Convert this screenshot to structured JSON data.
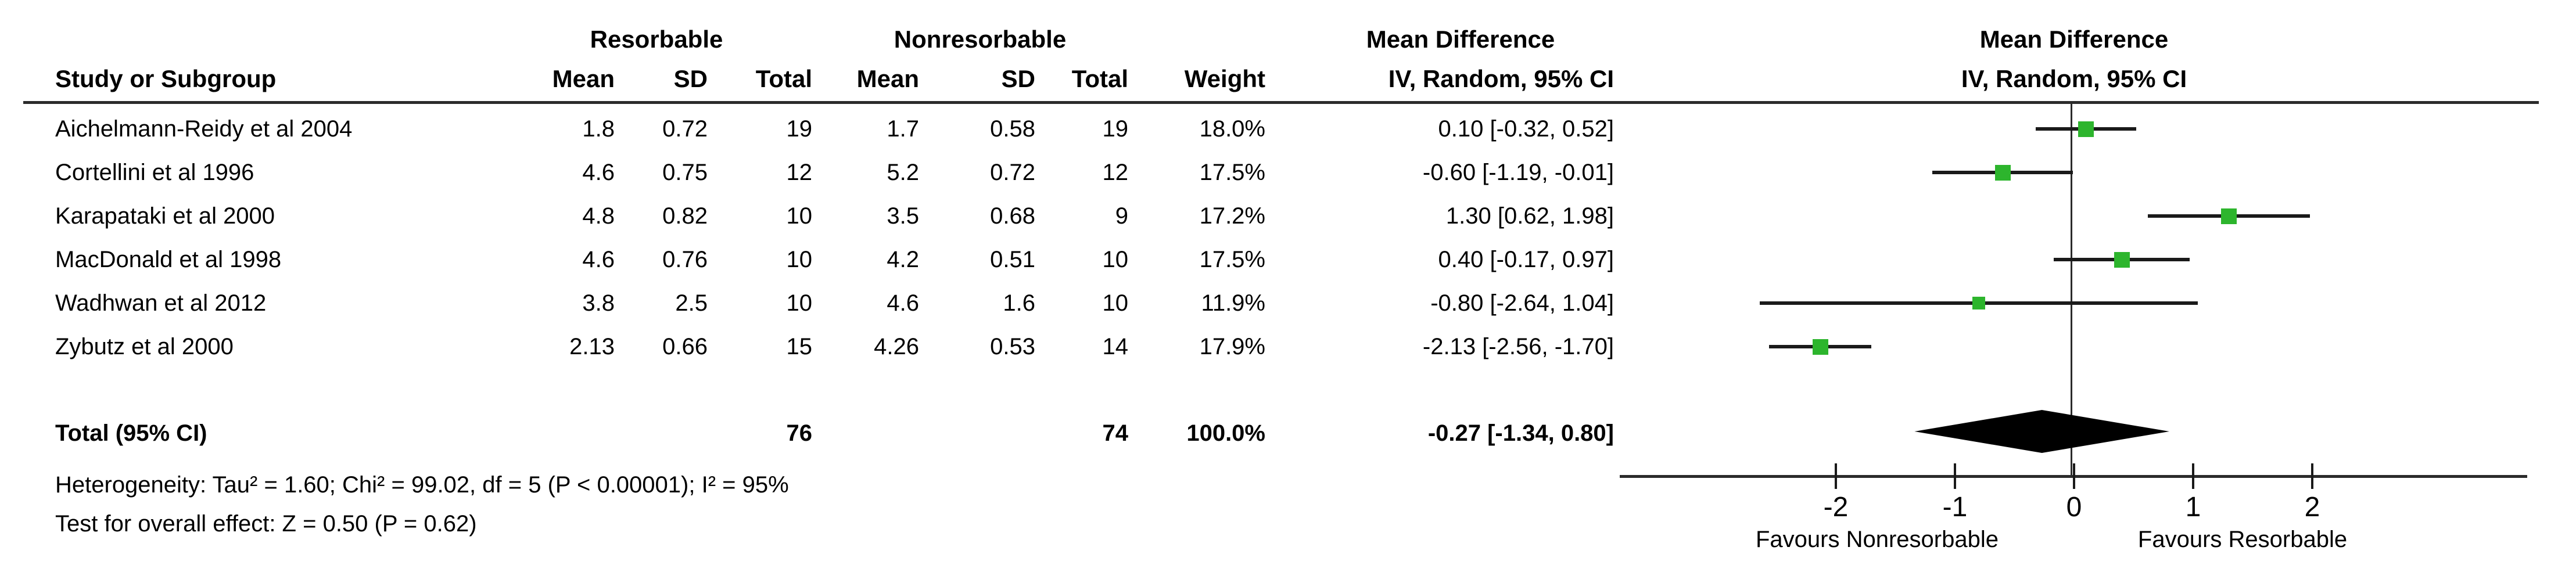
{
  "header": {
    "study_col": "Study or Subgroup",
    "group1": "Resorbable",
    "group2": "Nonresorbable",
    "mean": "Mean",
    "sd": "SD",
    "total": "Total",
    "weight": "Weight",
    "effect_line1": "Mean Difference",
    "effect_line2": "IV, Random, 95% CI",
    "plot_effect_line1": "Mean Difference",
    "plot_effect_line2": "IV, Random, 95% CI"
  },
  "chart_data": {
    "type": "forest",
    "effect_measure": "Mean Difference",
    "model": "IV, Random, 95% CI",
    "studies": [
      {
        "name": "Aichelmann-Reidy et al 2004",
        "r_mean": "1.8",
        "r_sd": "0.72",
        "r_total": "19",
        "n_mean": "1.7",
        "n_sd": "0.58",
        "n_total": "19",
        "weight": "18.0%",
        "ci_text": "0.10 [-0.32, 0.52]",
        "md": 0.1,
        "low": -0.32,
        "high": 0.52,
        "weight_value": 18.0
      },
      {
        "name": "Cortellini et al 1996",
        "r_mean": "4.6",
        "r_sd": "0.75",
        "r_total": "12",
        "n_mean": "5.2",
        "n_sd": "0.72",
        "n_total": "12",
        "weight": "17.5%",
        "ci_text": "-0.60 [-1.19, -0.01]",
        "md": -0.6,
        "low": -1.19,
        "high": -0.01,
        "weight_value": 17.5
      },
      {
        "name": "Karapataki et al 2000",
        "r_mean": "4.8",
        "r_sd": "0.82",
        "r_total": "10",
        "n_mean": "3.5",
        "n_sd": "0.68",
        "n_total": "9",
        "weight": "17.2%",
        "ci_text": "1.30 [0.62, 1.98]",
        "md": 1.3,
        "low": 0.62,
        "high": 1.98,
        "weight_value": 17.2
      },
      {
        "name": "MacDonald et al 1998",
        "r_mean": "4.6",
        "r_sd": "0.76",
        "r_total": "10",
        "n_mean": "4.2",
        "n_sd": "0.51",
        "n_total": "10",
        "weight": "17.5%",
        "ci_text": "0.40 [-0.17, 0.97]",
        "md": 0.4,
        "low": -0.17,
        "high": 0.97,
        "weight_value": 17.5
      },
      {
        "name": "Wadhwan et al 2012",
        "r_mean": "3.8",
        "r_sd": "2.5",
        "r_total": "10",
        "n_mean": "4.6",
        "n_sd": "1.6",
        "n_total": "10",
        "weight": "11.9%",
        "ci_text": "-0.80 [-2.64, 1.04]",
        "md": -0.8,
        "low": -2.64,
        "high": 1.04,
        "weight_value": 11.9
      },
      {
        "name": "Zybutz et al 2000",
        "r_mean": "2.13",
        "r_sd": "0.66",
        "r_total": "15",
        "n_mean": "4.26",
        "n_sd": "0.53",
        "n_total": "14",
        "weight": "17.9%",
        "ci_text": "-2.13 [-2.56, -1.70]",
        "md": -2.13,
        "low": -2.56,
        "high": -1.7,
        "weight_value": 17.9
      }
    ],
    "total": {
      "label": "Total (95% CI)",
      "r_total": "76",
      "n_total": "74",
      "weight": "100.0%",
      "ci_text": "-0.27 [-1.34, 0.80]",
      "md": -0.27,
      "low": -1.34,
      "high": 0.8
    },
    "heterogeneity": "Heterogeneity: Tau² = 1.60; Chi² = 99.02, df = 5 (P < 0.00001); I² = 95%",
    "overall_effect": "Test for overall effect: Z = 0.50 (P = 0.62)",
    "axis": {
      "ticks": [
        "-2",
        "-1",
        "0",
        "1",
        "2"
      ],
      "tick_values": [
        -2,
        -1,
        0,
        1,
        2
      ],
      "left_label": "Favours Nonresorbable",
      "right_label": "Favours Resorbable"
    },
    "colors": {
      "square_green": "#2DB52D",
      "diamond_black": "#000000",
      "line_black": "#1a1a1a"
    }
  }
}
